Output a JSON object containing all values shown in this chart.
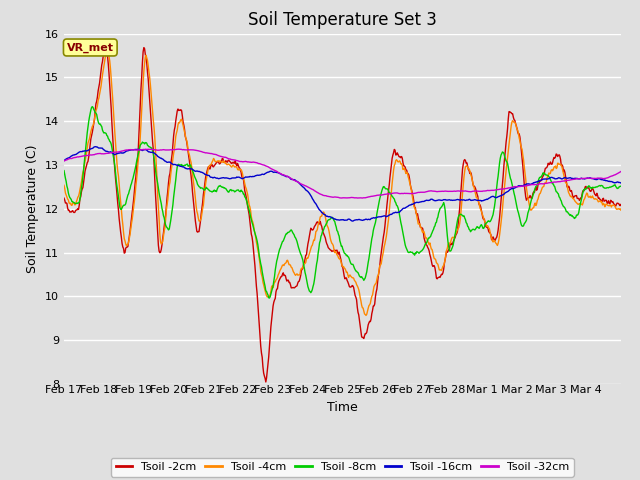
{
  "title": "Soil Temperature Set 3",
  "xlabel": "Time",
  "ylabel": "Soil Temperature (C)",
  "ylim": [
    8.0,
    16.0
  ],
  "yticks": [
    8.0,
    9.0,
    10.0,
    11.0,
    12.0,
    13.0,
    14.0,
    15.0,
    16.0
  ],
  "xtick_labels": [
    "Feb 17",
    "Feb 18",
    "Feb 19",
    "Feb 20",
    "Feb 21",
    "Feb 22",
    "Feb 23",
    "Feb 24",
    "Feb 25",
    "Feb 26",
    "Feb 27",
    "Feb 28",
    "Mar 1",
    "Mar 2",
    "Mar 3",
    "Mar 4"
  ],
  "series_colors": [
    "#cc0000",
    "#ff8800",
    "#00cc00",
    "#0000cc",
    "#cc00cc"
  ],
  "series_labels": [
    "Tsoil -2cm",
    "Tsoil -4cm",
    "Tsoil -8cm",
    "Tsoil -16cm",
    "Tsoil -32cm"
  ],
  "line_width": 1.0,
  "bg_color": "#e0e0e0",
  "plot_bg_color": "#e0e0e0",
  "grid_color": "#ffffff",
  "legend_box_color": "#ffff99",
  "legend_box_text": "VR_met",
  "title_fontsize": 12,
  "label_fontsize": 9,
  "tick_fontsize": 8,
  "figwidth": 6.4,
  "figheight": 4.8,
  "dpi": 100
}
